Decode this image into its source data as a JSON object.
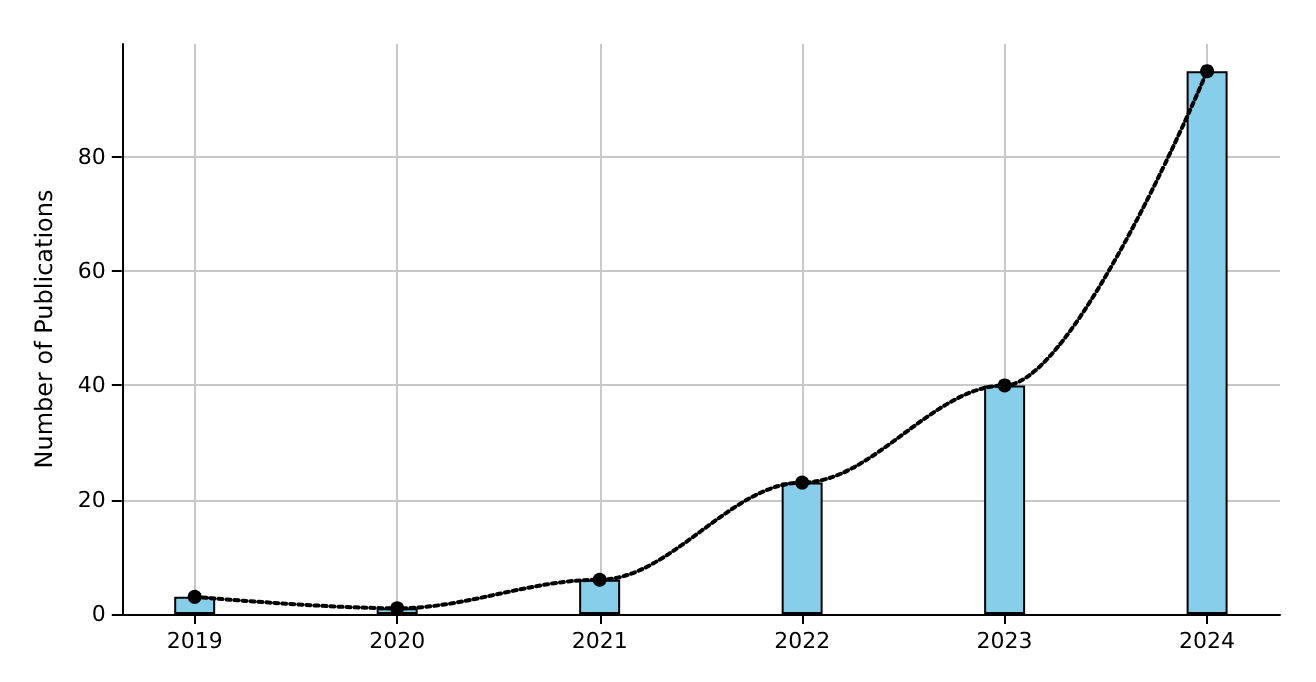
{
  "chart_data": {
    "type": "bar",
    "ylabel": "Number of Publications",
    "x": [
      2019,
      2020,
      2021,
      2022,
      2023,
      2024
    ],
    "xlim": [
      2018.64,
      2024.36
    ],
    "xticks": [
      2019,
      2020,
      2021,
      2022,
      2023,
      2024
    ],
    "ylim": [
      0,
      99.75
    ],
    "yticks": [
      0,
      20,
      40,
      60,
      80
    ],
    "series": [
      {
        "color": "#87ceeb",
        "values": [
          3,
          1,
          6,
          23,
          40,
          95
        ]
      },
      {
        "type": "line",
        "color": "#000000",
        "values": [
          3,
          1,
          6,
          23,
          40,
          95
        ],
        "marker": "circle",
        "line_style": "dotted"
      }
    ],
    "grid": true
  }
}
